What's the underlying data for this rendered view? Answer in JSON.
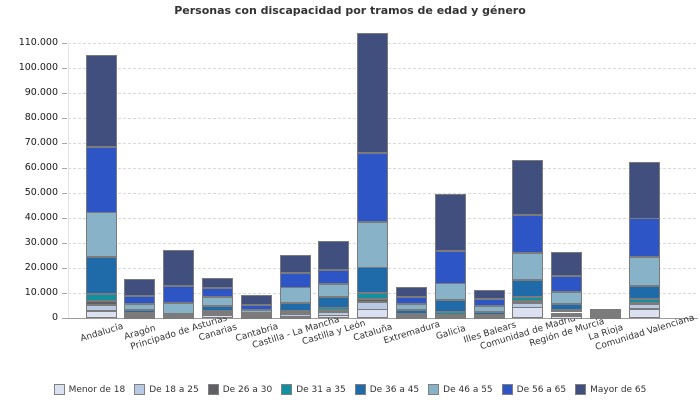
{
  "title": "Personas con discapacidad por tramos de edad y género",
  "chart_data": {
    "type": "bar",
    "stacked": true,
    "title": "Personas con discapacidad por tramos de edad y género",
    "xlabel": "",
    "ylabel": "",
    "ylim": [
      0,
      110000
    ],
    "ytick_step": 10000,
    "grid": "horizontal-dashed",
    "legend_position": "bottom",
    "categories": [
      "Andalucía",
      "Aragón",
      "Principado de Asturias",
      "Canarias",
      "Cantabria",
      "Castilla - La Mancha",
      "Castilla y León",
      "Cataluña",
      "Extremadura",
      "Galicia",
      "Illes Balears",
      "Comunidad de Madrid",
      "Región de Murcia",
      "La Rioja",
      "Comunidad Valenciana"
    ],
    "yticks": [
      {
        "value": 0,
        "label": "0"
      },
      {
        "value": 10000,
        "label": "10.000"
      },
      {
        "value": 20000,
        "label": "20.000"
      },
      {
        "value": 30000,
        "label": "30.000"
      },
      {
        "value": 40000,
        "label": "40.000"
      },
      {
        "value": 50000,
        "label": "50.000"
      },
      {
        "value": 60000,
        "label": "60.000"
      },
      {
        "value": 70000,
        "label": "70.000"
      },
      {
        "value": 80000,
        "label": "80.000"
      },
      {
        "value": 90000,
        "label": "90.000"
      },
      {
        "value": 100000,
        "label": "100.000"
      },
      {
        "value": 110000,
        "label": "110.000"
      }
    ],
    "series": [
      {
        "name": "Menor de 18",
        "color": "#dce1f1",
        "values": [
          2900,
          600,
          300,
          1100,
          400,
          500,
          1100,
          3500,
          600,
          600,
          500,
          4300,
          1000,
          300,
          3500
        ]
      },
      {
        "name": "De 18 a 25",
        "color": "#b7c9e3",
        "values": [
          2300,
          600,
          350,
          900,
          300,
          1100,
          1400,
          3000,
          550,
          600,
          400,
          1800,
          800,
          250,
          2100
        ]
      },
      {
        "name": "De 26 a 30",
        "color": "#5e6064",
        "values": [
          1600,
          300,
          150,
          300,
          200,
          500,
          700,
          1200,
          250,
          300,
          250,
          800,
          400,
          150,
          500
        ]
      },
      {
        "name": "De 31 a 35",
        "color": "#12909f",
        "values": [
          2800,
          400,
          400,
          500,
          300,
          800,
          1100,
          2400,
          400,
          1000,
          350,
          1600,
          900,
          300,
          1400
        ]
      },
      {
        "name": "De 36 a 45",
        "color": "#1f6aa9",
        "values": [
          14900,
          1200,
          800,
          2100,
          700,
          3200,
          4200,
          10200,
          1400,
          4700,
          1000,
          6700,
          2500,
          600,
          5300
        ]
      },
      {
        "name": "De 46 a 55",
        "color": "#87b2c7",
        "values": [
          17800,
          2400,
          4200,
          3600,
          1200,
          6200,
          5100,
          18200,
          2400,
          6700,
          2300,
          10900,
          4900,
          500,
          11500
        ]
      },
      {
        "name": "De 56 a 65",
        "color": "#2e55c5",
        "values": [
          26200,
          3300,
          6600,
          3600,
          2000,
          5800,
          5600,
          27600,
          2900,
          13000,
          2700,
          15100,
          6300,
          600,
          15600
        ]
      },
      {
        "name": "Mayor de 65",
        "color": "#404f7d",
        "values": [
          36700,
          6800,
          14400,
          4000,
          4000,
          7000,
          11600,
          47800,
          3800,
          22700,
          3700,
          22000,
          9700,
          800,
          22600
        ]
      }
    ],
    "totals": [
      105200,
      15600,
      27200,
      16100,
      9100,
      25100,
      30800,
      113900,
      12300,
      49600,
      11200,
      63200,
      26500,
      3500,
      62500
    ]
  }
}
